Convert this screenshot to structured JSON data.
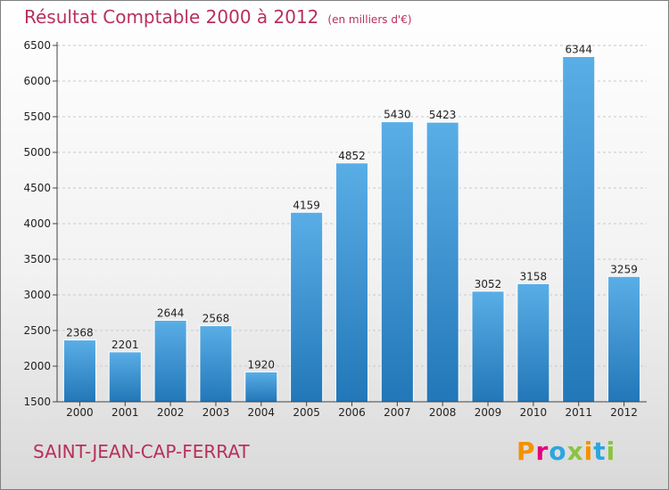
{
  "title": "Résultat Comptable 2000 à 2012",
  "subtitle": "(en milliers d'€)",
  "location": "SAINT-JEAN-CAP-FERRAT",
  "logo": {
    "text": "Proxiti",
    "colors": [
      "#f39200",
      "#e2007a",
      "#2aa6df",
      "#8cc43f",
      "#f39200",
      "#2aa6df",
      "#8cc43f"
    ]
  },
  "colors": {
    "bar_top": "#5aaee6",
    "bar_bottom": "#2277b8",
    "accent": "#b8305a",
    "axis": "#444444",
    "grid": "#c8c8c8"
  },
  "chart_data": {
    "type": "bar",
    "title": "Résultat Comptable 2000 à 2012",
    "xlabel": "",
    "ylabel": "",
    "categories": [
      "2000",
      "2001",
      "2002",
      "2003",
      "2004",
      "2005",
      "2006",
      "2007",
      "2008",
      "2009",
      "2010",
      "2011",
      "2012"
    ],
    "values": [
      2368,
      2201,
      2644,
      2568,
      1920,
      4159,
      4852,
      5430,
      5423,
      3052,
      3158,
      6344,
      3259
    ],
    "ylim": [
      1500,
      6500
    ],
    "yticks": [
      1500,
      2000,
      2500,
      3000,
      3500,
      4000,
      4500,
      5000,
      5500,
      6000,
      6500
    ],
    "grid": true,
    "legend": "none"
  }
}
